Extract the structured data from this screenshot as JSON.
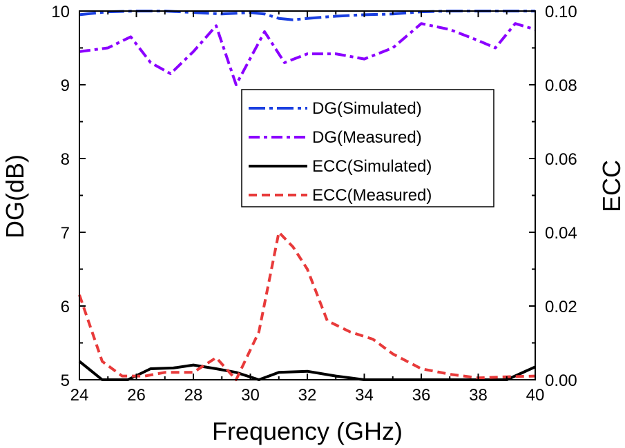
{
  "chart_data": {
    "type": "line",
    "xlabel": "Frequency (GHz)",
    "ylabel_left": "DG(dB)",
    "ylabel_right": "ECC",
    "xlim": [
      24,
      40
    ],
    "ylim_left": [
      5,
      10
    ],
    "ylim_right": [
      0,
      0.1
    ],
    "x_ticks": [
      24,
      26,
      28,
      30,
      32,
      34,
      36,
      38,
      40
    ],
    "x_tick_labels": [
      "24",
      "26",
      "28",
      "30",
      "32",
      "34",
      "36",
      "38",
      "40"
    ],
    "y_left_ticks": [
      5,
      6,
      7,
      8,
      9,
      10
    ],
    "y_left_tick_labels": [
      "5",
      "6",
      "7",
      "8",
      "9",
      "10"
    ],
    "y_right_ticks": [
      0,
      0.02,
      0.04,
      0.06,
      0.08,
      0.1
    ],
    "y_right_tick_labels": [
      "0.00",
      "0.02",
      "0.04",
      "0.06",
      "0.08",
      "0.10"
    ],
    "legend_position": "upper-center",
    "series": [
      {
        "name": "DG(Simulated)",
        "axis": "left",
        "color": "#1a3fe0",
        "style": "dash-dot",
        "x": [
          24,
          25,
          26,
          27,
          28,
          29,
          30,
          30.5,
          31,
          31.5,
          32,
          33,
          34,
          35,
          36,
          37,
          38,
          39,
          40
        ],
        "y": [
          9.95,
          9.99,
          10.0,
          10.0,
          9.98,
          9.96,
          9.98,
          9.96,
          9.9,
          9.88,
          9.9,
          9.93,
          9.95,
          9.96,
          9.99,
          10.0,
          10.0,
          10.0,
          10.0
        ]
      },
      {
        "name": "DG(Measured)",
        "axis": "left",
        "color": "#8b00ff",
        "style": "dash-dot",
        "x": [
          24,
          25,
          25.8,
          26.5,
          27.2,
          28,
          28.8,
          29.5,
          30.5,
          31.2,
          32,
          33,
          34,
          35,
          36,
          37,
          38,
          38.6,
          39.3,
          40
        ],
        "y": [
          9.45,
          9.5,
          9.65,
          9.3,
          9.15,
          9.45,
          9.8,
          9.0,
          9.72,
          9.3,
          9.42,
          9.42,
          9.35,
          9.5,
          9.83,
          9.75,
          9.6,
          9.5,
          9.83,
          9.75
        ]
      },
      {
        "name": "ECC(Simulated)",
        "axis": "right",
        "color": "#000000",
        "style": "solid",
        "x": [
          24,
          24.8,
          25.7,
          26.5,
          27.3,
          28,
          28.8,
          29.5,
          30.3,
          31,
          32,
          33,
          34,
          35,
          36,
          37,
          38,
          39,
          40
        ],
        "y": [
          0.005,
          0.0,
          0.0,
          0.003,
          0.0032,
          0.004,
          0.003,
          0.002,
          0.0,
          0.002,
          0.0023,
          0.001,
          0.0,
          0.0,
          0.0,
          0.0,
          0.0,
          0.0,
          0.0035
        ]
      },
      {
        "name": "ECC(Measured)",
        "axis": "right",
        "color": "#e83a3a",
        "style": "dashed",
        "x": [
          24,
          24.8,
          25.5,
          26.3,
          27,
          28,
          28.8,
          29.5,
          30.3,
          31,
          31.5,
          32,
          32.7,
          33.5,
          34.3,
          35,
          36,
          37,
          38,
          39,
          40
        ],
        "y": [
          0.023,
          0.005,
          0.001,
          0.001,
          0.002,
          0.002,
          0.006,
          0.0,
          0.013,
          0.04,
          0.036,
          0.03,
          0.016,
          0.013,
          0.011,
          0.007,
          0.003,
          0.0015,
          0.0005,
          0.0008,
          0.001
        ]
      }
    ]
  }
}
